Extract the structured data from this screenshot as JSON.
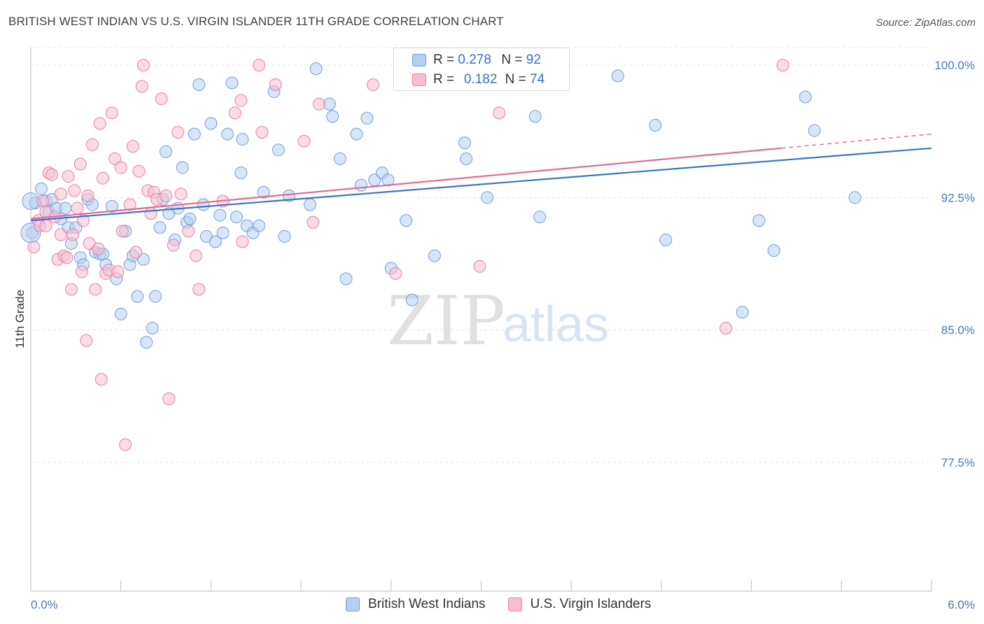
{
  "header": {
    "title": "BRITISH WEST INDIAN VS U.S. VIRGIN ISLANDER 11TH GRADE CORRELATION CHART",
    "source": "Source: ZipAtlas.com"
  },
  "watermark": {
    "zip": "ZIP",
    "atlas": "atlas"
  },
  "legend": {
    "r_label": "R =",
    "n_label": "N =",
    "series": [
      {
        "name": "British West Indians",
        "r": "0.278",
        "n": "92",
        "color": "#6fa0dc",
        "fill": "#b6cff0"
      },
      {
        "name": "U.S. Virgin Islanders",
        "r": "0.182",
        "n": "74",
        "color": "#e87fa3",
        "fill": "#f6bfd1"
      }
    ]
  },
  "chart_data": {
    "type": "scatter",
    "title": "BRITISH WEST INDIAN VS U.S. VIRGIN ISLANDER 11TH GRADE CORRELATION CHART",
    "xlabel": "",
    "ylabel": "11th Grade",
    "x_tick_labels": [
      "0.0%",
      "6.0%"
    ],
    "y_tick_labels": [
      "100.0%",
      "92.5%",
      "85.0%",
      "77.5%"
    ],
    "y_ticks": [
      100.0,
      92.5,
      85.0,
      77.5
    ],
    "xlim": [
      0,
      6
    ],
    "ylim": [
      70.2,
      101.0
    ],
    "grid": true,
    "legend_position": "top-center",
    "series": [
      {
        "name": "British West Indians",
        "color": "#6fa0dc",
        "trend": {
          "x0": 0.0,
          "y0": 91.2,
          "x1": 6.0,
          "y1": 95.3
        },
        "points": [
          [
            0.03,
            92.2
          ],
          [
            0.07,
            93.0
          ],
          [
            0.1,
            92.3
          ],
          [
            0.12,
            91.7
          ],
          [
            0.14,
            92.4
          ],
          [
            0.17,
            91.9
          ],
          [
            0.2,
            91.3
          ],
          [
            0.23,
            91.9
          ],
          [
            0.25,
            90.8
          ],
          [
            0.27,
            89.9
          ],
          [
            0.3,
            90.8
          ],
          [
            0.33,
            89.1
          ],
          [
            0.35,
            88.7
          ],
          [
            0.38,
            92.4
          ],
          [
            0.41,
            92.1
          ],
          [
            0.43,
            89.4
          ],
          [
            0.46,
            89.3
          ],
          [
            0.48,
            89.3
          ],
          [
            0.5,
            88.7
          ],
          [
            0.54,
            92.0
          ],
          [
            0.57,
            87.9
          ],
          [
            0.6,
            85.9
          ],
          [
            0.63,
            90.6
          ],
          [
            0.66,
            88.7
          ],
          [
            0.68,
            89.2
          ],
          [
            0.71,
            86.9
          ],
          [
            0.75,
            89.0
          ],
          [
            0.77,
            84.3
          ],
          [
            0.81,
            85.1
          ],
          [
            0.83,
            86.9
          ],
          [
            0.86,
            90.8
          ],
          [
            0.88,
            92.4
          ],
          [
            0.9,
            95.1
          ],
          [
            0.92,
            91.6
          ],
          [
            0.96,
            90.1
          ],
          [
            0.98,
            91.9
          ],
          [
            1.01,
            94.2
          ],
          [
            1.04,
            91.1
          ],
          [
            1.06,
            91.3
          ],
          [
            1.09,
            96.1
          ],
          [
            1.12,
            98.9
          ],
          [
            1.15,
            92.1
          ],
          [
            1.17,
            90.3
          ],
          [
            1.2,
            96.7
          ],
          [
            1.23,
            90.0
          ],
          [
            1.26,
            91.5
          ],
          [
            1.28,
            90.5
          ],
          [
            1.31,
            96.1
          ],
          [
            1.34,
            99.0
          ],
          [
            1.37,
            91.4
          ],
          [
            1.4,
            93.9
          ],
          [
            1.41,
            95.8
          ],
          [
            1.44,
            90.9
          ],
          [
            1.48,
            90.5
          ],
          [
            1.52,
            90.9
          ],
          [
            1.55,
            92.8
          ],
          [
            1.62,
            98.5
          ],
          [
            1.65,
            95.2
          ],
          [
            1.69,
            90.3
          ],
          [
            1.72,
            92.6
          ],
          [
            1.86,
            92.1
          ],
          [
            1.9,
            99.8
          ],
          [
            1.99,
            97.8
          ],
          [
            2.01,
            97.1
          ],
          [
            2.06,
            94.7
          ],
          [
            2.1,
            87.9
          ],
          [
            2.17,
            96.1
          ],
          [
            2.2,
            93.2
          ],
          [
            2.24,
            97.0
          ],
          [
            2.29,
            93.5
          ],
          [
            2.34,
            93.9
          ],
          [
            2.38,
            93.5
          ],
          [
            2.4,
            88.5
          ],
          [
            2.5,
            91.2
          ],
          [
            2.54,
            86.7
          ],
          [
            2.69,
            89.2
          ],
          [
            2.89,
            95.6
          ],
          [
            2.9,
            94.7
          ],
          [
            3.04,
            92.5
          ],
          [
            3.36,
            97.1
          ],
          [
            3.39,
            91.4
          ],
          [
            3.52,
            99.4
          ],
          [
            3.91,
            99.4
          ],
          [
            4.16,
            96.6
          ],
          [
            4.23,
            90.1
          ],
          [
            4.74,
            86.0
          ],
          [
            4.85,
            91.2
          ],
          [
            4.95,
            89.5
          ],
          [
            5.16,
            98.2
          ],
          [
            5.22,
            96.3
          ],
          [
            5.49,
            92.5
          ],
          [
            0.01,
            90.5
          ]
        ]
      },
      {
        "name": "U.S. Virgin Islanders",
        "color": "#e87fa3",
        "trend": {
          "x0": 0.0,
          "y0": 91.3,
          "x1": 5.0,
          "y1": 95.3,
          "dash_to_x": 6.0,
          "dash_to_y": 96.1
        },
        "points": [
          [
            0.02,
            89.7
          ],
          [
            0.05,
            91.2
          ],
          [
            0.08,
            92.3
          ],
          [
            0.1,
            91.7
          ],
          [
            0.12,
            93.9
          ],
          [
            0.14,
            93.8
          ],
          [
            0.16,
            91.4
          ],
          [
            0.18,
            89.0
          ],
          [
            0.2,
            92.7
          ],
          [
            0.22,
            89.2
          ],
          [
            0.24,
            89.1
          ],
          [
            0.25,
            93.7
          ],
          [
            0.27,
            87.3
          ],
          [
            0.28,
            90.4
          ],
          [
            0.29,
            92.9
          ],
          [
            0.31,
            91.9
          ],
          [
            0.33,
            94.4
          ],
          [
            0.34,
            88.3
          ],
          [
            0.35,
            91.2
          ],
          [
            0.37,
            84.4
          ],
          [
            0.38,
            92.6
          ],
          [
            0.39,
            89.9
          ],
          [
            0.41,
            95.5
          ],
          [
            0.43,
            87.3
          ],
          [
            0.46,
            96.7
          ],
          [
            0.47,
            82.2
          ],
          [
            0.48,
            93.6
          ],
          [
            0.5,
            88.2
          ],
          [
            0.52,
            88.4
          ],
          [
            0.54,
            97.3
          ],
          [
            0.56,
            94.7
          ],
          [
            0.58,
            88.3
          ],
          [
            0.6,
            94.2
          ],
          [
            0.61,
            90.6
          ],
          [
            0.63,
            78.5
          ],
          [
            0.66,
            92.1
          ],
          [
            0.68,
            95.4
          ],
          [
            0.7,
            89.4
          ],
          [
            0.72,
            94.0
          ],
          [
            0.74,
            98.8
          ],
          [
            0.75,
            100.0
          ],
          [
            0.78,
            92.9
          ],
          [
            0.8,
            91.6
          ],
          [
            0.82,
            92.8
          ],
          [
            0.84,
            92.4
          ],
          [
            0.87,
            98.1
          ],
          [
            0.9,
            92.6
          ],
          [
            0.95,
            89.8
          ],
          [
            0.98,
            96.2
          ],
          [
            1.0,
            92.7
          ],
          [
            1.05,
            90.6
          ],
          [
            1.1,
            89.2
          ],
          [
            1.12,
            87.3
          ],
          [
            1.28,
            92.3
          ],
          [
            1.36,
            97.3
          ],
          [
            1.4,
            98.0
          ],
          [
            1.41,
            90.0
          ],
          [
            1.52,
            100.0
          ],
          [
            1.54,
            96.2
          ],
          [
            1.63,
            98.9
          ],
          [
            1.82,
            95.7
          ],
          [
            1.88,
            91.1
          ],
          [
            2.28,
            98.9
          ],
          [
            2.43,
            88.2
          ],
          [
            2.99,
            88.6
          ],
          [
            3.12,
            97.3
          ],
          [
            4.63,
            85.1
          ],
          [
            5.01,
            100.0
          ],
          [
            1.92,
            97.8
          ],
          [
            0.06,
            90.9
          ],
          [
            0.45,
            89.6
          ],
          [
            0.92,
            81.1
          ],
          [
            0.1,
            90.9
          ],
          [
            0.2,
            90.4
          ]
        ]
      }
    ]
  }
}
